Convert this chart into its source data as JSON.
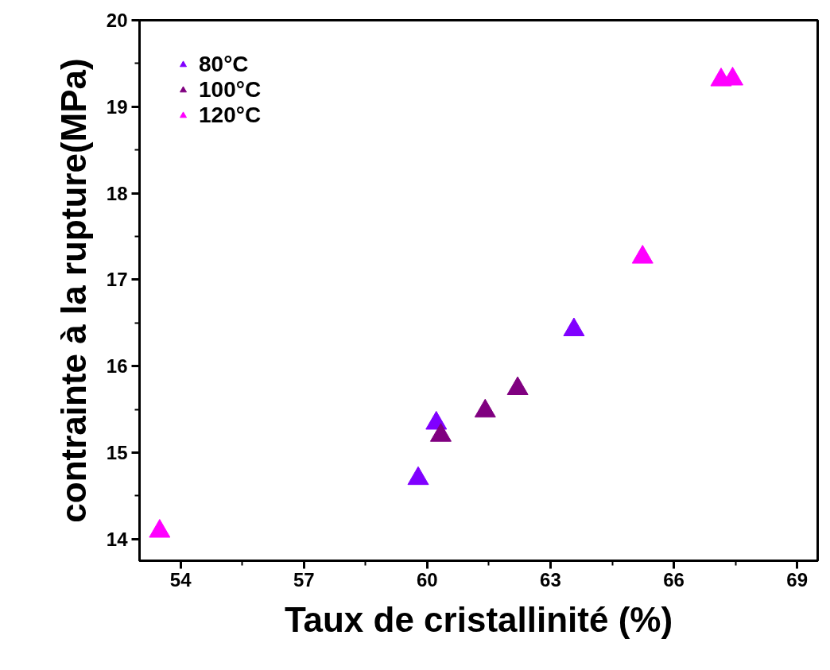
{
  "chart_data": {
    "type": "scatter",
    "xlabel": "Taux de cristallinité (%)",
    "ylabel": "contrainte à la rupture(MPa)",
    "xlim": [
      53,
      69.5
    ],
    "xticks": [
      54,
      57,
      60,
      63,
      66,
      69
    ],
    "ylim": [
      13.75,
      20
    ],
    "yticks": [
      14,
      15,
      16,
      17,
      18,
      19,
      20
    ],
    "grid": false,
    "legend": "top left",
    "marker": "triangle",
    "series": [
      {
        "name": "80°C",
        "color": "#8000ff",
        "x": [
          59.78,
          60.22,
          63.57
        ],
        "values": [
          14.7,
          15.34,
          16.42
        ]
      },
      {
        "name": "100°C",
        "color": "#800080",
        "x": [
          60.33,
          61.41,
          62.2
        ],
        "values": [
          15.2,
          15.48,
          15.74
        ]
      },
      {
        "name": "120°C",
        "color": "#ff00ff",
        "x": [
          53.49,
          65.24,
          67.15,
          67.43
        ],
        "values": [
          14.09,
          17.26,
          19.31,
          19.32
        ]
      }
    ]
  }
}
